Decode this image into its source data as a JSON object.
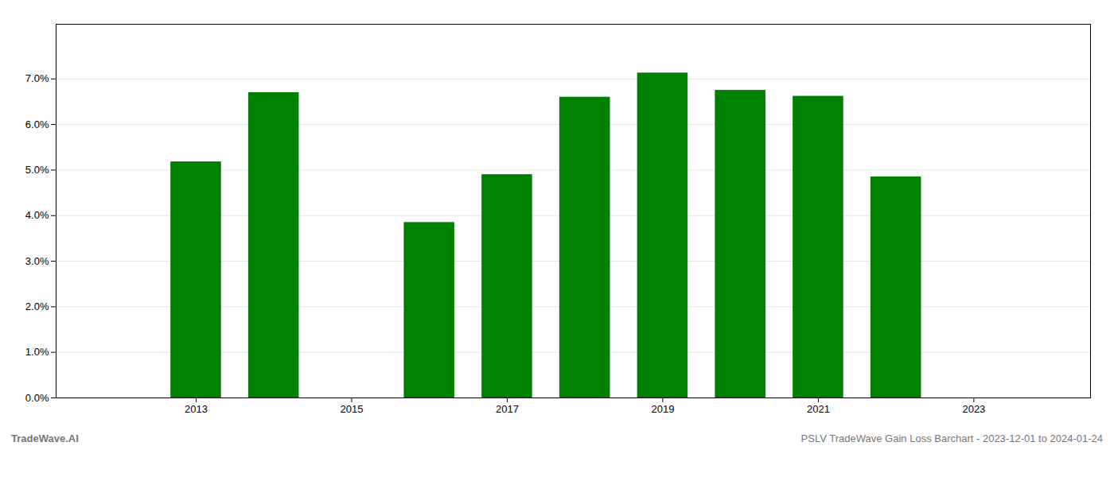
{
  "chart_data": {
    "type": "bar",
    "x": [
      2013,
      2014,
      2016,
      2017,
      2018,
      2019,
      2020,
      2021,
      2022
    ],
    "values": [
      0.0518,
      0.067,
      0.0385,
      0.049,
      0.066,
      0.0713,
      0.0675,
      0.0662,
      0.0485
    ],
    "color": "#008000",
    "xlim": [
      2011.2,
      2024.5
    ],
    "xticks": [
      2013,
      2015,
      2017,
      2019,
      2021,
      2023
    ],
    "ylim": [
      0.0,
      0.082
    ],
    "yticks": [
      {
        "value": 0.0,
        "label": "0.0%"
      },
      {
        "value": 0.01,
        "label": "1.0%"
      },
      {
        "value": 0.02,
        "label": "2.0%"
      },
      {
        "value": 0.03,
        "label": "3.0%"
      },
      {
        "value": 0.04,
        "label": "4.0%"
      },
      {
        "value": 0.05,
        "label": "5.0%"
      },
      {
        "value": 0.06,
        "label": "6.0%"
      },
      {
        "value": 0.07,
        "label": "7.0%"
      }
    ],
    "grid": true,
    "annotations": [
      "TradeWave.AI",
      "PSLV TradeWave Gain Loss Barchart - 2023-12-01 to 2024-01-24"
    ]
  }
}
